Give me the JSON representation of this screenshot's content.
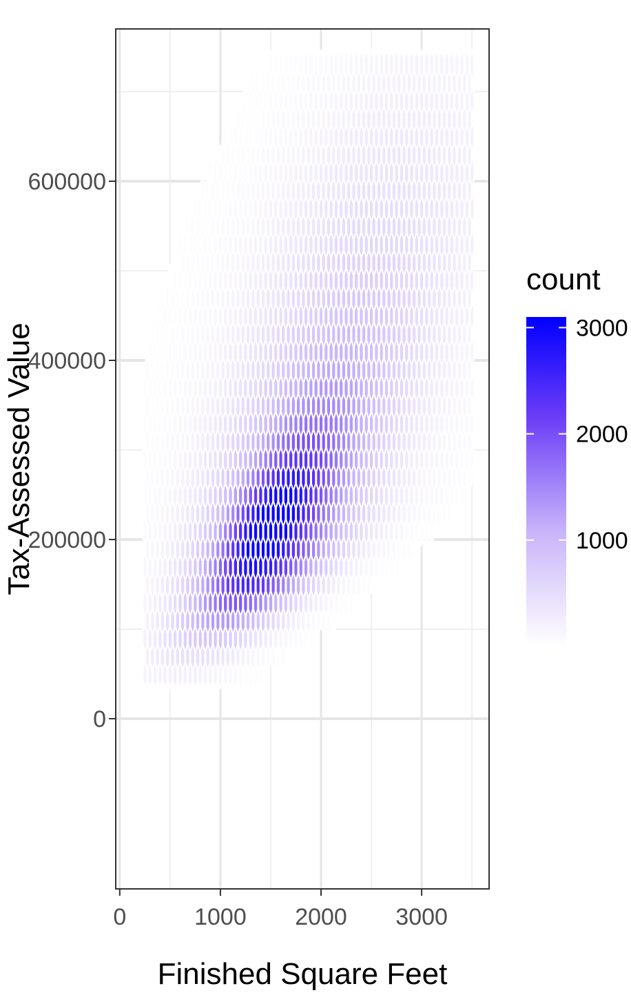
{
  "chart_data": {
    "type": "heatmap",
    "subtype": "hexbin",
    "title": "",
    "xlabel": "Finished Square Feet",
    "ylabel": "Tax-Assessed Value",
    "xlim": [
      -40,
      3670
    ],
    "ylim": [
      -190000,
      770000
    ],
    "x_ticks": [
      0,
      1000,
      2000,
      3000
    ],
    "x_tick_labels": [
      "0",
      "1000",
      "2000",
      "3000"
    ],
    "y_ticks": [
      0,
      200000,
      400000,
      600000
    ],
    "y_tick_labels": [
      "0",
      "200000",
      "400000",
      "600000"
    ],
    "grid": true,
    "theme": "bw",
    "legend": {
      "title": "count",
      "position": "right",
      "breaks": [
        1000,
        2000,
        3000
      ],
      "break_labels": [
        "1000",
        "2000",
        "3000"
      ],
      "range": [
        0,
        3100
      ],
      "low_color": "#ffffff",
      "high_color": "#0000ff"
    },
    "density_model": {
      "description": "Bivariate density of count over (sqft, value): joint peak near sqft 1000-1700, value 170000-240000, elongated along a positive slope.",
      "peak_count": 3000,
      "x_range": [
        250,
        3500
      ],
      "y_range": [
        50000,
        740000
      ],
      "hex_dx": 50,
      "hex_dy": 20000
    }
  }
}
